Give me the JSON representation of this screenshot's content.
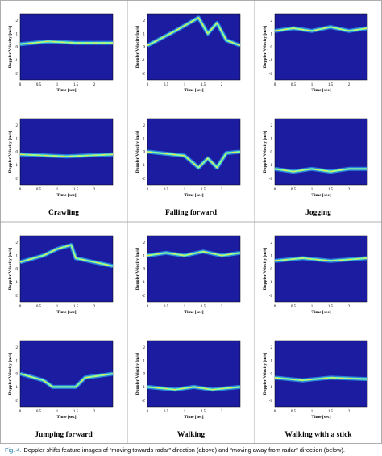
{
  "axes": {
    "ylabel": "Doppler Velocity [m/s]",
    "xlabel": "Time [sec]",
    "yticks": [
      "2",
      "1",
      "0",
      "-1",
      "-2"
    ],
    "xticks": [
      "0",
      "0.5",
      "1",
      "1.5",
      "2"
    ]
  },
  "panels": [
    {
      "label": "Crawling"
    },
    {
      "label": "Falling forward"
    },
    {
      "label": "Jogging"
    },
    {
      "label": "Jumping forward"
    },
    {
      "label": "Walking"
    },
    {
      "label": "Walking with a stick"
    }
  ],
  "caption": {
    "label": "Fig. 4.",
    "text": "Doppler shifts feature images of “moving towards radar” direction (above) and “moving away from radar” direction (below)."
  }
}
